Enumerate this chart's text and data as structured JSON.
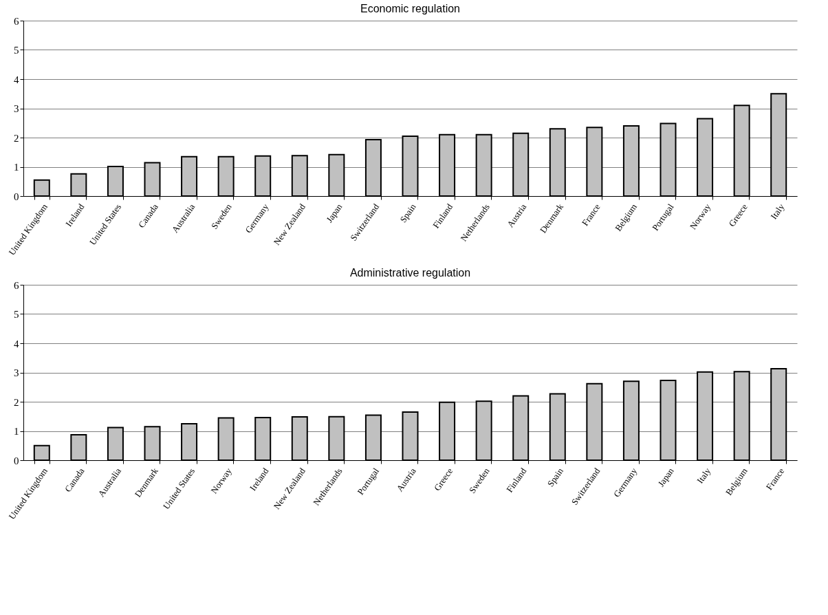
{
  "chart_data": [
    {
      "type": "bar",
      "title": "Economic regulation",
      "categories": [
        "United Kingdom",
        "Ireland",
        "United States",
        "Canada",
        "Australia",
        "Sweden",
        "Germany",
        "New Zealand",
        "Japan",
        "Switzerland",
        "Spain",
        "Finland",
        "Netherlands",
        "Austria",
        "Denmark",
        "France",
        "Belgium",
        "Portugal",
        "Norway",
        "Greece",
        "Italy"
      ],
      "values": [
        0.55,
        0.76,
        1.01,
        1.14,
        1.35,
        1.35,
        1.37,
        1.38,
        1.42,
        1.93,
        2.05,
        2.1,
        2.1,
        2.15,
        2.3,
        2.35,
        2.4,
        2.48,
        2.65,
        3.1,
        3.5
      ],
      "color": "#c0c0c0",
      "ylim": [
        0,
        6
      ],
      "yticks": [
        0,
        1,
        2,
        3,
        4,
        5,
        6
      ],
      "grid": "y"
    },
    {
      "type": "bar",
      "title": "Administrative regulation",
      "categories": [
        "United Kingdom",
        "Canada",
        "Australia",
        "Denmark",
        "United States",
        "Norway",
        "Ireland",
        "New Zealand",
        "Netherlands",
        "Portugal",
        "Austria",
        "Greece",
        "Sweden",
        "Finland",
        "Spain",
        "Switzerland",
        "Germany",
        "Japan",
        "Italy",
        "Belgium",
        "France"
      ],
      "values": [
        0.5,
        0.87,
        1.12,
        1.15,
        1.25,
        1.45,
        1.46,
        1.48,
        1.49,
        1.54,
        1.65,
        1.98,
        2.02,
        2.2,
        2.27,
        2.62,
        2.7,
        2.73,
        3.02,
        3.03,
        3.13
      ],
      "color": "#c0c0c0",
      "ylim": [
        0,
        6
      ],
      "yticks": [
        0,
        1,
        2,
        3,
        4,
        5,
        6
      ],
      "grid": "y"
    }
  ]
}
